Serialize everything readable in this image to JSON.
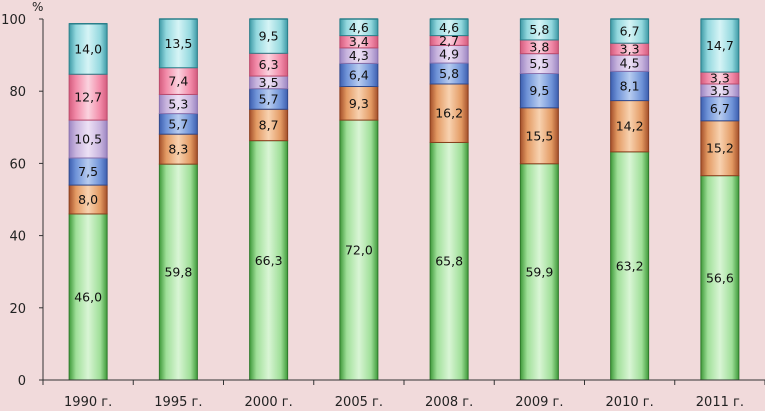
{
  "chart_data": {
    "type": "bar",
    "stacked": true,
    "unit": "%",
    "ylim": [
      0,
      100
    ],
    "yticks": [
      0,
      20,
      40,
      60,
      80,
      100
    ],
    "grid": false,
    "categories": [
      "1990 г.",
      "1995 г.",
      "2000 г.",
      "2005 г.",
      "2008 г.",
      "2009 г.",
      "2010 г.",
      "2011 г."
    ],
    "series": [
      {
        "values": [
          46.0,
          59.8,
          66.3,
          72.0,
          65.8,
          59.9,
          63.2,
          56.6
        ],
        "labels": [
          "46,0",
          "59,8",
          "66,3",
          "72,0",
          "65,8",
          "59,9",
          "63,2",
          "56,6"
        ]
      },
      {
        "values": [
          8.0,
          8.3,
          8.7,
          9.3,
          16.2,
          15.5,
          14.2,
          15.2
        ],
        "labels": [
          "8,0",
          "8,3",
          "8,7",
          "9,3",
          "16,2",
          "15,5",
          "14,2",
          "15,2"
        ]
      },
      {
        "values": [
          7.5,
          5.7,
          5.7,
          6.4,
          5.8,
          9.5,
          8.1,
          6.7
        ],
        "labels": [
          "7,5",
          "5,7",
          "5,7",
          "6,4",
          "5,8",
          "9,5",
          "8,1",
          "6,7"
        ]
      },
      {
        "values": [
          10.5,
          5.3,
          3.5,
          4.3,
          4.9,
          5.5,
          4.5,
          3.5
        ],
        "labels": [
          "10,5",
          "5,3",
          "3,5",
          "4,3",
          "4,9",
          "5,5",
          "4,5",
          "3,5"
        ]
      },
      {
        "values": [
          12.7,
          7.4,
          6.3,
          3.4,
          2.7,
          3.8,
          3.3,
          3.3
        ],
        "labels": [
          "12,7",
          "7,4",
          "6,3",
          "3,4",
          "2,7",
          "3,8",
          "3,3",
          "3,3"
        ]
      },
      {
        "values": [
          14.0,
          13.5,
          9.5,
          4.6,
          4.6,
          5.8,
          6.7,
          14.7
        ],
        "labels": [
          "14,0",
          "13,5",
          "9,5",
          "4,6",
          "4,6",
          "5,8",
          "6,7",
          "14,7"
        ]
      }
    ]
  },
  "colors": {
    "background": "#f1dadb",
    "series": [
      {
        "light": "#d9f5d5",
        "mid": "#9fdf98",
        "dark": "#3f9a3a",
        "edge": "#2f7a2c"
      },
      {
        "light": "#f8d2b0",
        "mid": "#e39a63",
        "dark": "#a5502a",
        "edge": "#8a3f1e"
      },
      {
        "light": "#b7ccf0",
        "mid": "#6f93d8",
        "dark": "#3d5fb0",
        "edge": "#30498c"
      },
      {
        "light": "#ede1f5",
        "mid": "#c8b4de",
        "dark": "#9c86c2",
        "edge": "#8a72ae"
      },
      {
        "light": "#fbd3df",
        "mid": "#f28aa8",
        "dark": "#d45c7e",
        "edge": "#bb4b6c"
      },
      {
        "light": "#d6f4f6",
        "mid": "#93d8de",
        "dark": "#3e9aa6",
        "edge": "#2b7f8a"
      }
    ]
  }
}
